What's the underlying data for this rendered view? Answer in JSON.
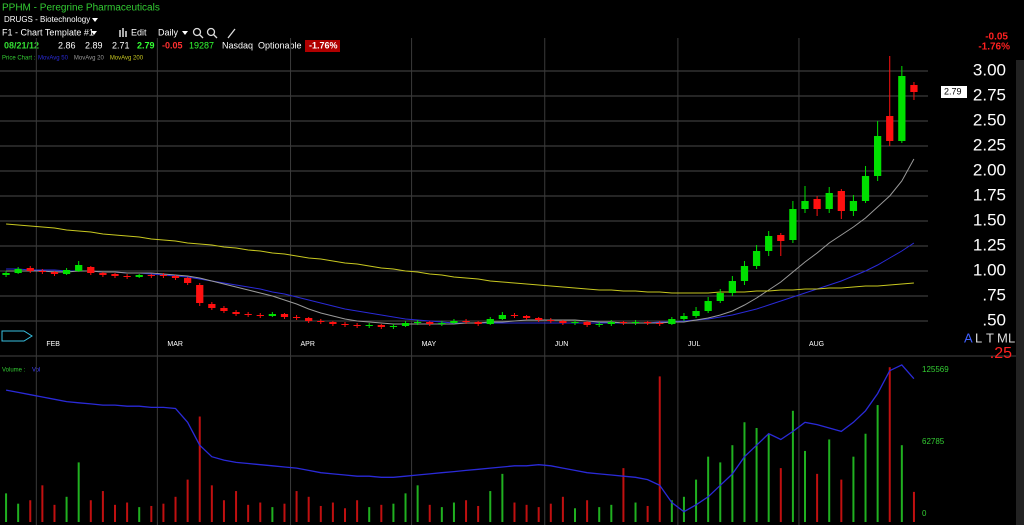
{
  "header": {
    "symbol": "PPHM - Peregrine Pharmaceuticals",
    "industry": "DRUGS - Biotechnology",
    "template": "F1 - Chart Template #1",
    "edit": "Edit",
    "period": "Daily",
    "quote": {
      "date": "08/21/12",
      "open": "2.86",
      "high": "2.89",
      "low": "2.71",
      "last": "2.79",
      "change": "-0.05",
      "volume": "19287",
      "exchange": "Nasdaq",
      "optionable": "Optionable",
      "change_pct": "-1.76%"
    },
    "corner_change": "-0.05",
    "corner_change_pct": "-1.76%",
    "price_chart_label": "Price Chart :",
    "volume_label": "Volume :",
    "volume_series_label": "Vol",
    "buttons": [
      "A",
      "L",
      "T",
      "M",
      "L"
    ],
    "corner_value": ".25"
  },
  "chart_data": {
    "type": "candlestick",
    "categories": [
      null,
      null,
      null,
      "FEB",
      null,
      null,
      null,
      null,
      null,
      null,
      null,
      null,
      null,
      "MAR",
      null,
      null,
      null,
      null,
      null,
      null,
      null,
      null,
      null,
      null,
      "APR",
      null,
      null,
      null,
      null,
      null,
      null,
      null,
      null,
      null,
      "MAY",
      null,
      null,
      null,
      null,
      null,
      null,
      null,
      null,
      null,
      null,
      "JUN",
      null,
      null,
      null,
      null,
      null,
      null,
      null,
      null,
      null,
      null,
      "JUL",
      null,
      null,
      null,
      null,
      null,
      null,
      null,
      null,
      null,
      "AUG",
      null,
      null,
      null,
      null,
      null,
      null,
      null,
      null,
      null
    ],
    "open": [
      0.96,
      0.98,
      1.03,
      1.0,
      0.99,
      0.97,
      1.0,
      1.04,
      0.98,
      0.97,
      0.95,
      0.94,
      0.96,
      0.96,
      0.95,
      0.93,
      0.86,
      0.67,
      0.63,
      0.59,
      0.57,
      0.56,
      0.55,
      0.57,
      0.54,
      0.53,
      0.5,
      0.49,
      0.47,
      0.46,
      0.45,
      0.46,
      0.44,
      0.45,
      0.48,
      0.49,
      0.47,
      0.48,
      0.5,
      0.49,
      0.47,
      0.52,
      0.56,
      0.55,
      0.53,
      0.51,
      0.5,
      0.48,
      0.49,
      0.46,
      0.47,
      0.49,
      0.48,
      0.49,
      0.48,
      0.47,
      0.52,
      0.55,
      0.6,
      0.7,
      0.78,
      0.9,
      1.05,
      1.2,
      1.36,
      1.31,
      1.62,
      1.72,
      1.62,
      1.8,
      1.6,
      1.7,
      1.95,
      2.55,
      2.3,
      2.86
    ],
    "high": [
      1.0,
      1.04,
      1.05,
      1.02,
      1.0,
      1.03,
      1.1,
      1.05,
      0.99,
      0.98,
      0.97,
      0.97,
      0.97,
      0.98,
      0.96,
      0.94,
      0.88,
      0.69,
      0.65,
      0.61,
      0.59,
      0.58,
      0.59,
      0.58,
      0.56,
      0.54,
      0.52,
      0.5,
      0.49,
      0.48,
      0.48,
      0.47,
      0.47,
      0.5,
      0.51,
      0.5,
      0.5,
      0.52,
      0.52,
      0.5,
      0.54,
      0.59,
      0.58,
      0.56,
      0.54,
      0.53,
      0.51,
      0.51,
      0.5,
      0.49,
      0.51,
      0.5,
      0.51,
      0.5,
      0.5,
      0.54,
      0.58,
      0.64,
      0.74,
      0.82,
      0.95,
      1.1,
      1.26,
      1.4,
      1.38,
      1.7,
      1.85,
      1.75,
      1.84,
      1.82,
      1.76,
      2.05,
      2.5,
      3.15,
      3.05,
      2.89
    ],
    "low": [
      0.94,
      0.97,
      0.98,
      0.97,
      0.95,
      0.96,
      0.99,
      0.96,
      0.94,
      0.93,
      0.92,
      0.93,
      0.93,
      0.93,
      0.91,
      0.86,
      0.65,
      0.61,
      0.58,
      0.55,
      0.54,
      0.53,
      0.54,
      0.52,
      0.51,
      0.48,
      0.47,
      0.45,
      0.44,
      0.43,
      0.43,
      0.42,
      0.42,
      0.44,
      0.46,
      0.45,
      0.45,
      0.47,
      0.47,
      0.45,
      0.46,
      0.51,
      0.53,
      0.51,
      0.49,
      0.48,
      0.46,
      0.46,
      0.44,
      0.44,
      0.45,
      0.46,
      0.46,
      0.46,
      0.45,
      0.46,
      0.5,
      0.53,
      0.58,
      0.68,
      0.75,
      0.86,
      1.02,
      1.15,
      1.15,
      1.28,
      1.58,
      1.55,
      1.58,
      1.52,
      1.55,
      1.68,
      1.9,
      2.25,
      2.28,
      2.71
    ],
    "close": [
      0.98,
      1.02,
      1.0,
      0.99,
      0.97,
      1.01,
      1.06,
      0.98,
      0.96,
      0.95,
      0.94,
      0.96,
      0.95,
      0.95,
      0.93,
      0.88,
      0.68,
      0.63,
      0.6,
      0.57,
      0.56,
      0.55,
      0.57,
      0.54,
      0.53,
      0.5,
      0.49,
      0.47,
      0.46,
      0.45,
      0.46,
      0.44,
      0.45,
      0.48,
      0.49,
      0.47,
      0.48,
      0.5,
      0.49,
      0.47,
      0.52,
      0.56,
      0.55,
      0.53,
      0.51,
      0.5,
      0.48,
      0.49,
      0.46,
      0.47,
      0.49,
      0.48,
      0.49,
      0.48,
      0.47,
      0.52,
      0.55,
      0.6,
      0.7,
      0.78,
      0.9,
      1.05,
      1.2,
      1.35,
      1.3,
      1.62,
      1.7,
      1.62,
      1.78,
      1.6,
      1.7,
      1.95,
      2.35,
      2.3,
      2.95,
      2.79
    ],
    "up_color": "#00e000",
    "down_color": "#ff1010",
    "moving_averages": [
      {
        "name": "MovAvg 50",
        "color": "#2a2ad8",
        "values": [
          1.02,
          1.02,
          1.01,
          1.01,
          1.01,
          1.0,
          1.0,
          1.0,
          0.99,
          0.99,
          0.98,
          0.98,
          0.97,
          0.96,
          0.95,
          0.94,
          0.92,
          0.9,
          0.88,
          0.86,
          0.84,
          0.82,
          0.79,
          0.77,
          0.74,
          0.71,
          0.68,
          0.65,
          0.62,
          0.6,
          0.58,
          0.56,
          0.54,
          0.52,
          0.51,
          0.5,
          0.49,
          0.48,
          0.48,
          0.48,
          0.48,
          0.48,
          0.48,
          0.48,
          0.48,
          0.48,
          0.48,
          0.48,
          0.48,
          0.48,
          0.48,
          0.48,
          0.48,
          0.48,
          0.49,
          0.49,
          0.5,
          0.51,
          0.52,
          0.54,
          0.56,
          0.59,
          0.62,
          0.66,
          0.7,
          0.74,
          0.78,
          0.82,
          0.86,
          0.9,
          0.95,
          1.0,
          1.06,
          1.13,
          1.2,
          1.28
        ]
      },
      {
        "name": "MovAvg 20",
        "color": "#9a9a9a",
        "values": [
          1.0,
          1.0,
          1.0,
          1.0,
          0.99,
          0.99,
          1.0,
          1.0,
          0.99,
          0.99,
          0.98,
          0.98,
          0.98,
          0.97,
          0.96,
          0.95,
          0.93,
          0.9,
          0.87,
          0.84,
          0.81,
          0.78,
          0.75,
          0.71,
          0.67,
          0.62,
          0.58,
          0.55,
          0.52,
          0.5,
          0.49,
          0.48,
          0.47,
          0.47,
          0.47,
          0.47,
          0.47,
          0.47,
          0.48,
          0.48,
          0.49,
          0.49,
          0.5,
          0.51,
          0.51,
          0.51,
          0.51,
          0.51,
          0.5,
          0.49,
          0.49,
          0.48,
          0.48,
          0.48,
          0.48,
          0.49,
          0.49,
          0.51,
          0.53,
          0.56,
          0.6,
          0.66,
          0.73,
          0.81,
          0.89,
          0.99,
          1.09,
          1.18,
          1.28,
          1.36,
          1.44,
          1.53,
          1.64,
          1.75,
          1.9,
          2.12
        ]
      },
      {
        "name": "MovAvg 200",
        "color": "#c8c820",
        "values": [
          1.47,
          1.46,
          1.45,
          1.44,
          1.43,
          1.41,
          1.4,
          1.39,
          1.37,
          1.36,
          1.35,
          1.34,
          1.32,
          1.31,
          1.3,
          1.28,
          1.27,
          1.26,
          1.24,
          1.23,
          1.21,
          1.2,
          1.18,
          1.17,
          1.15,
          1.13,
          1.12,
          1.1,
          1.08,
          1.07,
          1.05,
          1.03,
          1.02,
          1.0,
          0.99,
          0.97,
          0.96,
          0.94,
          0.93,
          0.92,
          0.9,
          0.89,
          0.88,
          0.87,
          0.86,
          0.85,
          0.84,
          0.83,
          0.82,
          0.81,
          0.81,
          0.8,
          0.8,
          0.79,
          0.79,
          0.78,
          0.78,
          0.78,
          0.78,
          0.79,
          0.79,
          0.79,
          0.8,
          0.8,
          0.81,
          0.81,
          0.82,
          0.82,
          0.83,
          0.83,
          0.84,
          0.85,
          0.85,
          0.86,
          0.87,
          0.88
        ]
      }
    ],
    "ylim": [
      0.36,
      3.23
    ],
    "yticks": [
      {
        "value": 0.5,
        "label": ".50"
      },
      {
        "value": 0.75,
        "label": ".75"
      },
      {
        "value": 1,
        "label": "1.00"
      },
      {
        "value": 1.25,
        "label": "1.25"
      },
      {
        "value": 1.5,
        "label": "1.50"
      },
      {
        "value": 1.75,
        "label": "1.75"
      },
      {
        "value": 2,
        "label": "2.00"
      },
      {
        "value": 2.25,
        "label": "2.25"
      },
      {
        "value": 2.5,
        "label": "2.50"
      },
      {
        "value": 2.75,
        "label": "2.75"
      },
      {
        "value": 3,
        "label": "3.00"
      }
    ],
    "grid": true,
    "volume": [
      18000,
      9000,
      12000,
      25000,
      8000,
      15000,
      45000,
      12000,
      20000,
      8000,
      10000,
      6000,
      7000,
      9000,
      15000,
      30000,
      85000,
      25000,
      12000,
      20000,
      8000,
      10000,
      6000,
      9000,
      20000,
      15000,
      7000,
      10000,
      5000,
      12000,
      6000,
      8000,
      9000,
      18000,
      25000,
      8000,
      6000,
      10000,
      12000,
      7000,
      20000,
      35000,
      10000,
      8000,
      6000,
      9000,
      15000,
      5000,
      12000,
      6000,
      8000,
      40000,
      10000,
      7000,
      120000,
      12000,
      15000,
      30000,
      50000,
      45000,
      60000,
      80000,
      75000,
      70000,
      40000,
      90000,
      55000,
      35000,
      65000,
      30000,
      50000,
      70000,
      95000,
      128000,
      60000,
      19287
    ],
    "volume_ma": {
      "color": "#2a2ad8",
      "values": [
        108000,
        106000,
        104000,
        102000,
        100000,
        98000,
        97000,
        96000,
        95000,
        95000,
        94000,
        94000,
        93000,
        93000,
        92000,
        80000,
        60000,
        50000,
        47000,
        45000,
        44000,
        43000,
        42000,
        41000,
        40000,
        38000,
        36000,
        35000,
        34000,
        33000,
        33000,
        32000,
        32000,
        33000,
        34000,
        35000,
        36000,
        37000,
        38000,
        39000,
        40000,
        41000,
        42000,
        42000,
        43000,
        42000,
        40000,
        38000,
        36000,
        35000,
        34000,
        33000,
        32000,
        30000,
        25000,
        10000,
        2000,
        8000,
        15000,
        25000,
        35000,
        50000,
        60000,
        70000,
        65000,
        72000,
        80000,
        78000,
        75000,
        72000,
        80000,
        90000,
        105000,
        125000,
        130000,
        118000
      ]
    },
    "y2lim": [
      0,
      132547
    ],
    "y2ticks": [
      0,
      62785,
      125569
    ]
  }
}
